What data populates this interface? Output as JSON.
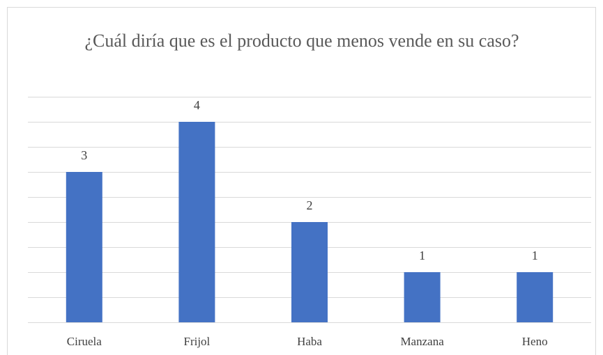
{
  "chart_data": {
    "type": "bar",
    "title": "¿Cuál diría que es el producto que menos vende en su caso?",
    "categories": [
      "Ciruela",
      "Frijol",
      "Haba",
      "Manzana",
      "Heno"
    ],
    "values": [
      3,
      4,
      2,
      1,
      1
    ],
    "color": "#4472c4",
    "ylim": [
      0,
      4.5
    ],
    "yticks": [
      0,
      0.5,
      1,
      1.5,
      2,
      2.5,
      3,
      3.5,
      4,
      4.5
    ],
    "grid": true
  }
}
